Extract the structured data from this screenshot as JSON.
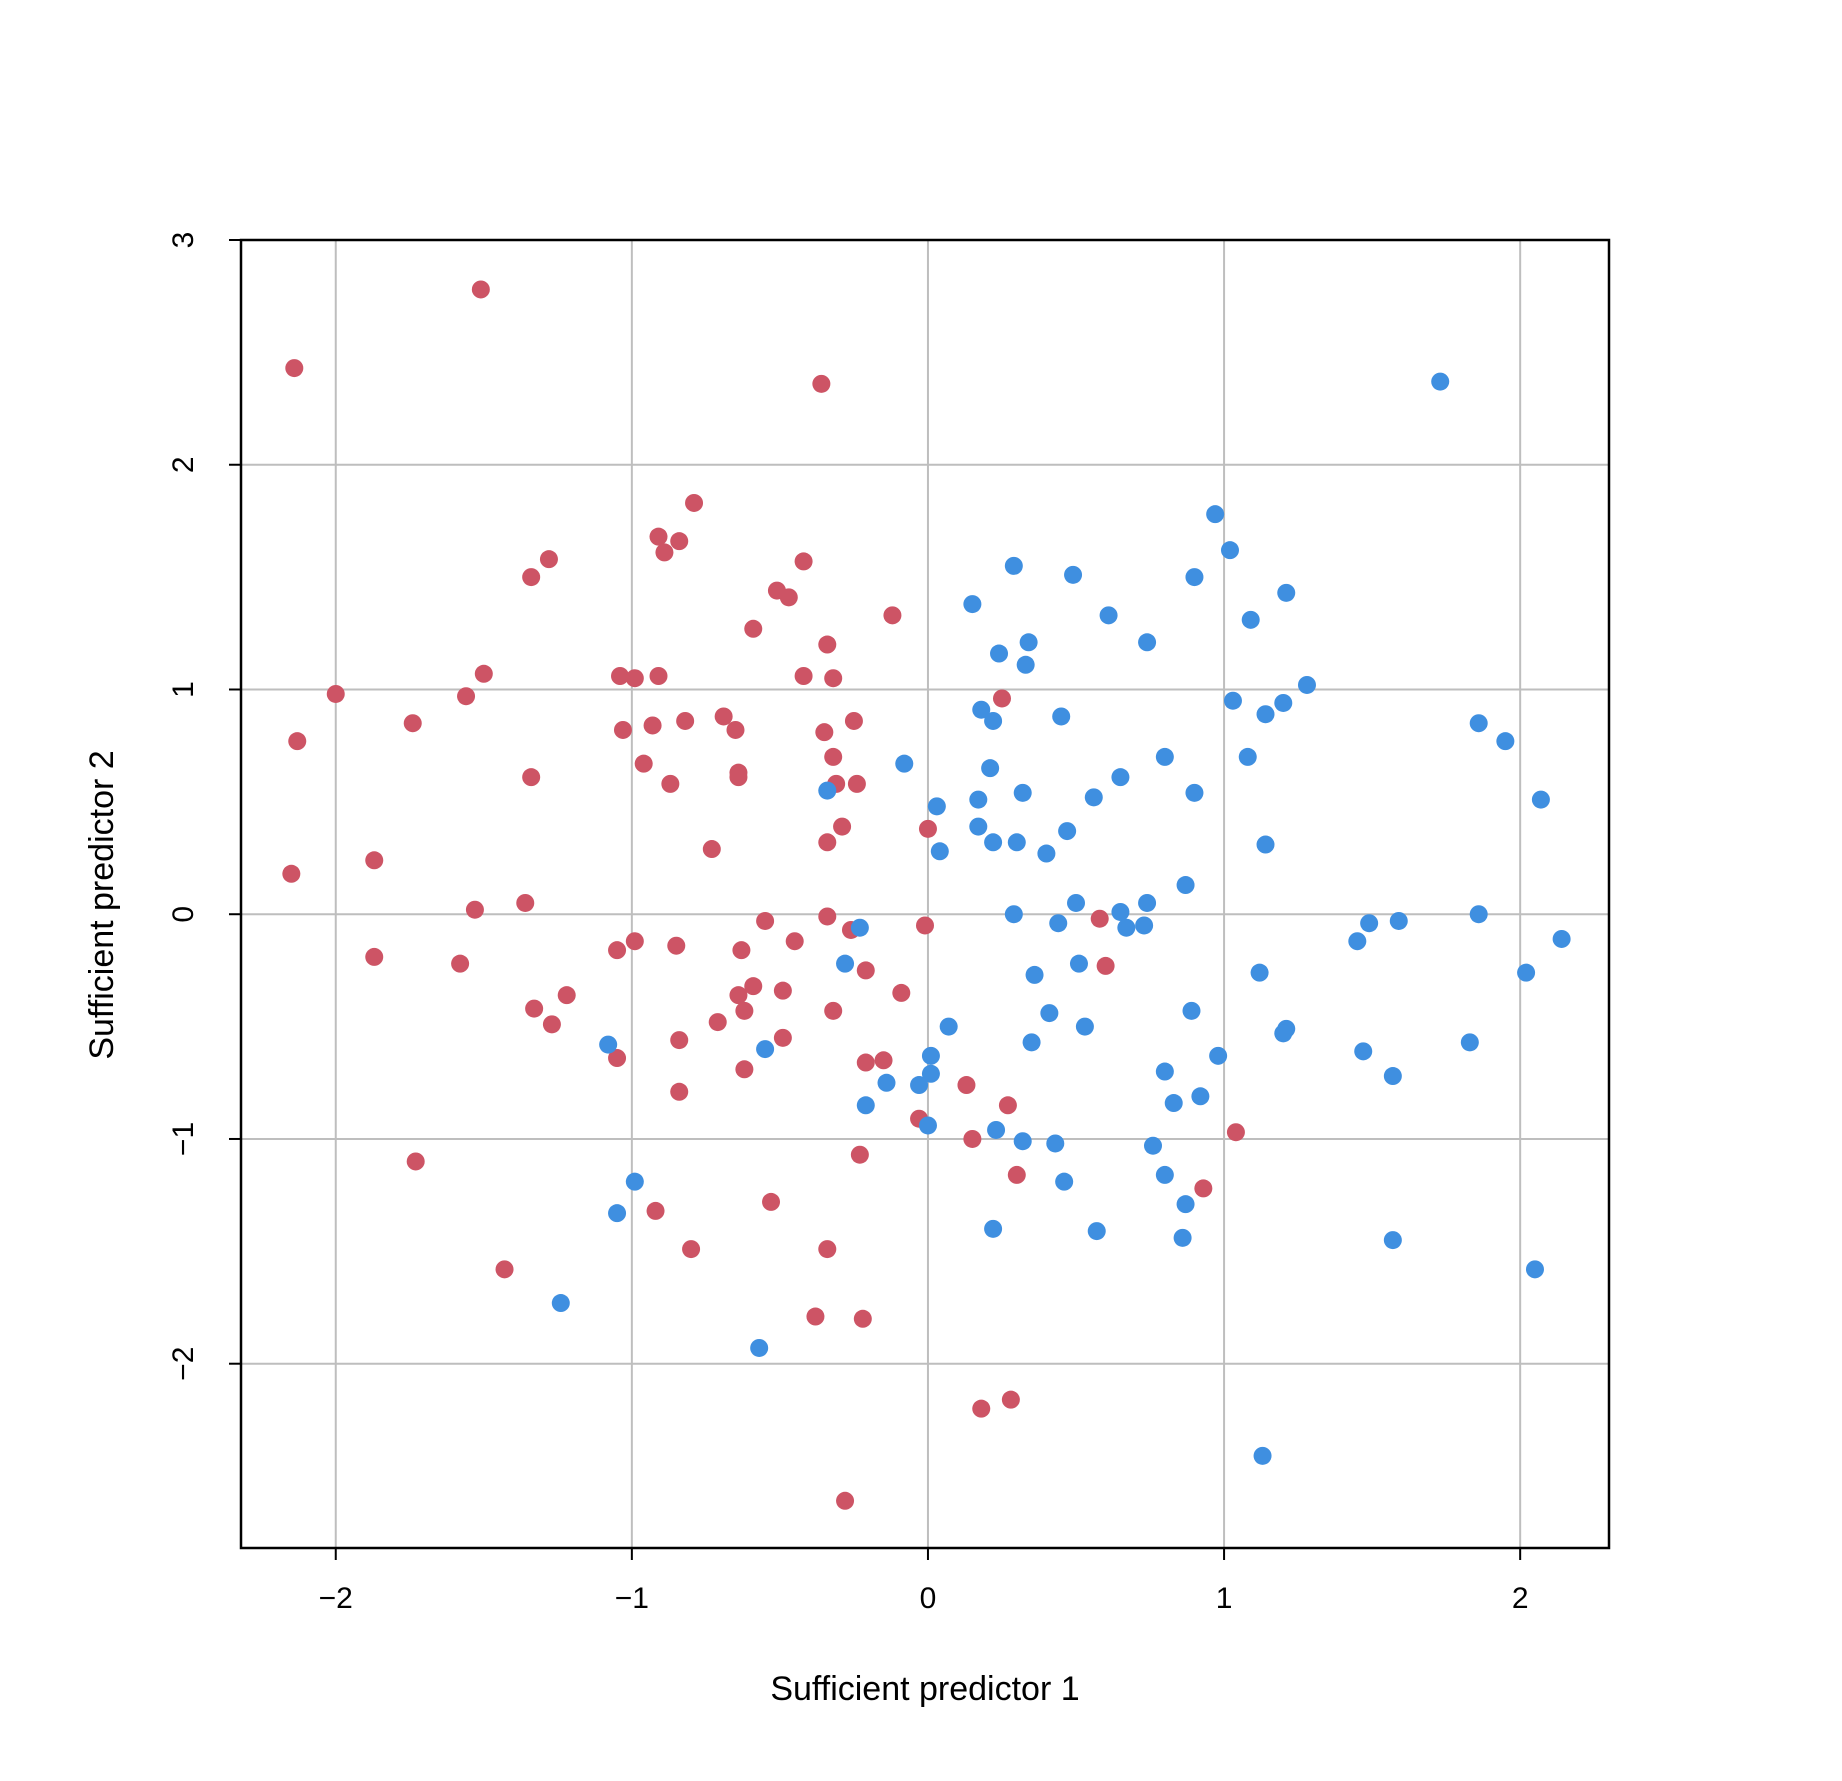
{
  "chart_data": {
    "type": "scatter",
    "xlabel": "Sufficient predictor  1",
    "ylabel": "Sufficient predictor  2",
    "xlim": [
      -2.32,
      2.3
    ],
    "ylim": [
      -2.82,
      3.0
    ],
    "xticks": [
      -2,
      -1,
      0,
      1,
      2
    ],
    "yticks": [
      -2,
      -1,
      0,
      1,
      2,
      3
    ],
    "xtick_labels": [
      "−2",
      "−1",
      "0",
      "1",
      "2"
    ],
    "ytick_labels": [
      "−2",
      "−1",
      "0",
      "1",
      "2",
      "3"
    ],
    "grid": true,
    "colors": {
      "red": "#CD5465",
      "blue": "#3F8FE0",
      "grid": "#BEBEBE",
      "axis": "#000000"
    },
    "series": [
      {
        "color": "#CD5465",
        "points": [
          [
            -2.14,
            2.43
          ],
          [
            -1.51,
            2.78
          ],
          [
            -0.36,
            2.36
          ],
          [
            -0.79,
            1.83
          ],
          [
            -0.91,
            1.68
          ],
          [
            -0.84,
            1.66
          ],
          [
            -0.89,
            1.61
          ],
          [
            -1.28,
            1.58
          ],
          [
            -0.42,
            1.57
          ],
          [
            -1.34,
            1.5
          ],
          [
            -0.51,
            1.44
          ],
          [
            -0.47,
            1.41
          ],
          [
            -0.12,
            1.33
          ],
          [
            -0.59,
            1.27
          ],
          [
            -0.34,
            1.2
          ],
          [
            -1.5,
            1.07
          ],
          [
            -1.04,
            1.06
          ],
          [
            -0.91,
            1.06
          ],
          [
            -0.42,
            1.06
          ],
          [
            -0.99,
            1.05
          ],
          [
            -0.32,
            1.05
          ],
          [
            -2.0,
            0.98
          ],
          [
            -1.56,
            0.97
          ],
          [
            0.25,
            0.96
          ],
          [
            -0.69,
            0.88
          ],
          [
            -0.82,
            0.86
          ],
          [
            -1.74,
            0.85
          ],
          [
            -0.25,
            0.86
          ],
          [
            -0.93,
            0.84
          ],
          [
            -1.03,
            0.82
          ],
          [
            -0.65,
            0.82
          ],
          [
            -0.35,
            0.81
          ],
          [
            -2.13,
            0.77
          ],
          [
            -0.32,
            0.7
          ],
          [
            -0.96,
            0.67
          ],
          [
            -0.64,
            0.63
          ],
          [
            -0.64,
            0.61
          ],
          [
            -1.34,
            0.61
          ],
          [
            -0.87,
            0.58
          ],
          [
            -0.31,
            0.58
          ],
          [
            -0.24,
            0.58
          ],
          [
            -0.29,
            0.39
          ],
          [
            0.0,
            0.38
          ],
          [
            -0.34,
            0.32
          ],
          [
            -0.73,
            0.29
          ],
          [
            -1.87,
            0.24
          ],
          [
            -2.15,
            0.18
          ],
          [
            -1.36,
            0.05
          ],
          [
            -1.53,
            0.02
          ],
          [
            -0.34,
            -0.01
          ],
          [
            0.58,
            -0.02
          ],
          [
            -0.55,
            -0.03
          ],
          [
            -0.01,
            -0.05
          ],
          [
            -0.26,
            -0.07
          ],
          [
            -0.45,
            -0.12
          ],
          [
            -0.99,
            -0.12
          ],
          [
            -0.85,
            -0.14
          ],
          [
            -1.05,
            -0.16
          ],
          [
            -0.63,
            -0.16
          ],
          [
            -1.87,
            -0.19
          ],
          [
            -1.58,
            -0.22
          ],
          [
            0.6,
            -0.23
          ],
          [
            -0.21,
            -0.25
          ],
          [
            -0.59,
            -0.32
          ],
          [
            -0.49,
            -0.34
          ],
          [
            -0.09,
            -0.35
          ],
          [
            -1.22,
            -0.36
          ],
          [
            -0.64,
            -0.36
          ],
          [
            -1.33,
            -0.42
          ],
          [
            -0.32,
            -0.43
          ],
          [
            -0.62,
            -0.43
          ],
          [
            -0.71,
            -0.48
          ],
          [
            -1.27,
            -0.49
          ],
          [
            -0.84,
            -0.56
          ],
          [
            -0.49,
            -0.55
          ],
          [
            -0.15,
            -0.65
          ],
          [
            -0.21,
            -0.66
          ],
          [
            -1.05,
            -0.64
          ],
          [
            -0.62,
            -0.69
          ],
          [
            0.13,
            -0.76
          ],
          [
            -0.84,
            -0.79
          ],
          [
            0.27,
            -0.85
          ],
          [
            -0.03,
            -0.91
          ],
          [
            1.04,
            -0.97
          ],
          [
            0.15,
            -1.0
          ],
          [
            -0.23,
            -1.07
          ],
          [
            -1.73,
            -1.1
          ],
          [
            0.3,
            -1.16
          ],
          [
            0.93,
            -1.22
          ],
          [
            -0.53,
            -1.28
          ],
          [
            -0.92,
            -1.32
          ],
          [
            -0.8,
            -1.49
          ],
          [
            -0.34,
            -1.49
          ],
          [
            -1.43,
            -1.58
          ],
          [
            -0.38,
            -1.79
          ],
          [
            -0.22,
            -1.8
          ],
          [
            0.28,
            -2.16
          ],
          [
            0.18,
            -2.2
          ],
          [
            -0.28,
            -2.61
          ]
        ]
      },
      {
        "color": "#3F8FE0",
        "points": [
          [
            1.73,
            2.37
          ],
          [
            0.97,
            1.78
          ],
          [
            1.02,
            1.62
          ],
          [
            0.29,
            1.55
          ],
          [
            0.49,
            1.51
          ],
          [
            0.9,
            1.5
          ],
          [
            1.21,
            1.43
          ],
          [
            0.15,
            1.38
          ],
          [
            0.61,
            1.33
          ],
          [
            1.09,
            1.31
          ],
          [
            0.34,
            1.21
          ],
          [
            0.74,
            1.21
          ],
          [
            0.24,
            1.16
          ],
          [
            0.33,
            1.11
          ],
          [
            1.28,
            1.02
          ],
          [
            1.03,
            0.95
          ],
          [
            1.2,
            0.94
          ],
          [
            0.18,
            0.91
          ],
          [
            1.14,
            0.89
          ],
          [
            0.45,
            0.88
          ],
          [
            0.22,
            0.86
          ],
          [
            1.86,
            0.85
          ],
          [
            1.95,
            0.77
          ],
          [
            0.8,
            0.7
          ],
          [
            1.08,
            0.7
          ],
          [
            -0.08,
            0.67
          ],
          [
            0.21,
            0.65
          ],
          [
            0.65,
            0.61
          ],
          [
            -0.34,
            0.55
          ],
          [
            0.32,
            0.54
          ],
          [
            0.9,
            0.54
          ],
          [
            0.56,
            0.52
          ],
          [
            0.17,
            0.51
          ],
          [
            2.07,
            0.51
          ],
          [
            0.03,
            0.48
          ],
          [
            0.17,
            0.39
          ],
          [
            0.47,
            0.37
          ],
          [
            0.22,
            0.32
          ],
          [
            0.3,
            0.32
          ],
          [
            1.14,
            0.31
          ],
          [
            0.04,
            0.28
          ],
          [
            0.4,
            0.27
          ],
          [
            0.87,
            0.13
          ],
          [
            0.5,
            0.05
          ],
          [
            0.74,
            0.05
          ],
          [
            0.65,
            0.01
          ],
          [
            0.29,
            0.0
          ],
          [
            1.86,
            0.0
          ],
          [
            1.59,
            -0.03
          ],
          [
            1.49,
            -0.04
          ],
          [
            0.44,
            -0.04
          ],
          [
            0.73,
            -0.05
          ],
          [
            0.67,
            -0.06
          ],
          [
            -0.23,
            -0.06
          ],
          [
            2.14,
            -0.11
          ],
          [
            1.45,
            -0.12
          ],
          [
            -0.28,
            -0.22
          ],
          [
            0.51,
            -0.22
          ],
          [
            1.12,
            -0.26
          ],
          [
            2.02,
            -0.26
          ],
          [
            0.36,
            -0.27
          ],
          [
            0.89,
            -0.43
          ],
          [
            0.41,
            -0.44
          ],
          [
            0.53,
            -0.5
          ],
          [
            0.07,
            -0.5
          ],
          [
            1.21,
            -0.51
          ],
          [
            1.2,
            -0.53
          ],
          [
            1.83,
            -0.57
          ],
          [
            0.35,
            -0.57
          ],
          [
            -1.08,
            -0.58
          ],
          [
            -0.55,
            -0.6
          ],
          [
            1.47,
            -0.61
          ],
          [
            0.01,
            -0.63
          ],
          [
            0.98,
            -0.63
          ],
          [
            0.8,
            -0.7
          ],
          [
            0.01,
            -0.71
          ],
          [
            1.57,
            -0.72
          ],
          [
            -0.14,
            -0.75
          ],
          [
            -0.03,
            -0.76
          ],
          [
            0.92,
            -0.81
          ],
          [
            0.83,
            -0.84
          ],
          [
            -0.21,
            -0.85
          ],
          [
            0.0,
            -0.94
          ],
          [
            0.23,
            -0.96
          ],
          [
            0.32,
            -1.01
          ],
          [
            0.43,
            -1.02
          ],
          [
            0.76,
            -1.03
          ],
          [
            0.8,
            -1.16
          ],
          [
            -0.99,
            -1.19
          ],
          [
            0.46,
            -1.19
          ],
          [
            0.87,
            -1.29
          ],
          [
            -1.05,
            -1.33
          ],
          [
            0.22,
            -1.4
          ],
          [
            0.57,
            -1.41
          ],
          [
            0.86,
            -1.44
          ],
          [
            1.57,
            -1.45
          ],
          [
            2.05,
            -1.58
          ],
          [
            -1.24,
            -1.73
          ],
          [
            -0.57,
            -1.93
          ],
          [
            1.13,
            -2.41
          ]
        ]
      }
    ]
  }
}
